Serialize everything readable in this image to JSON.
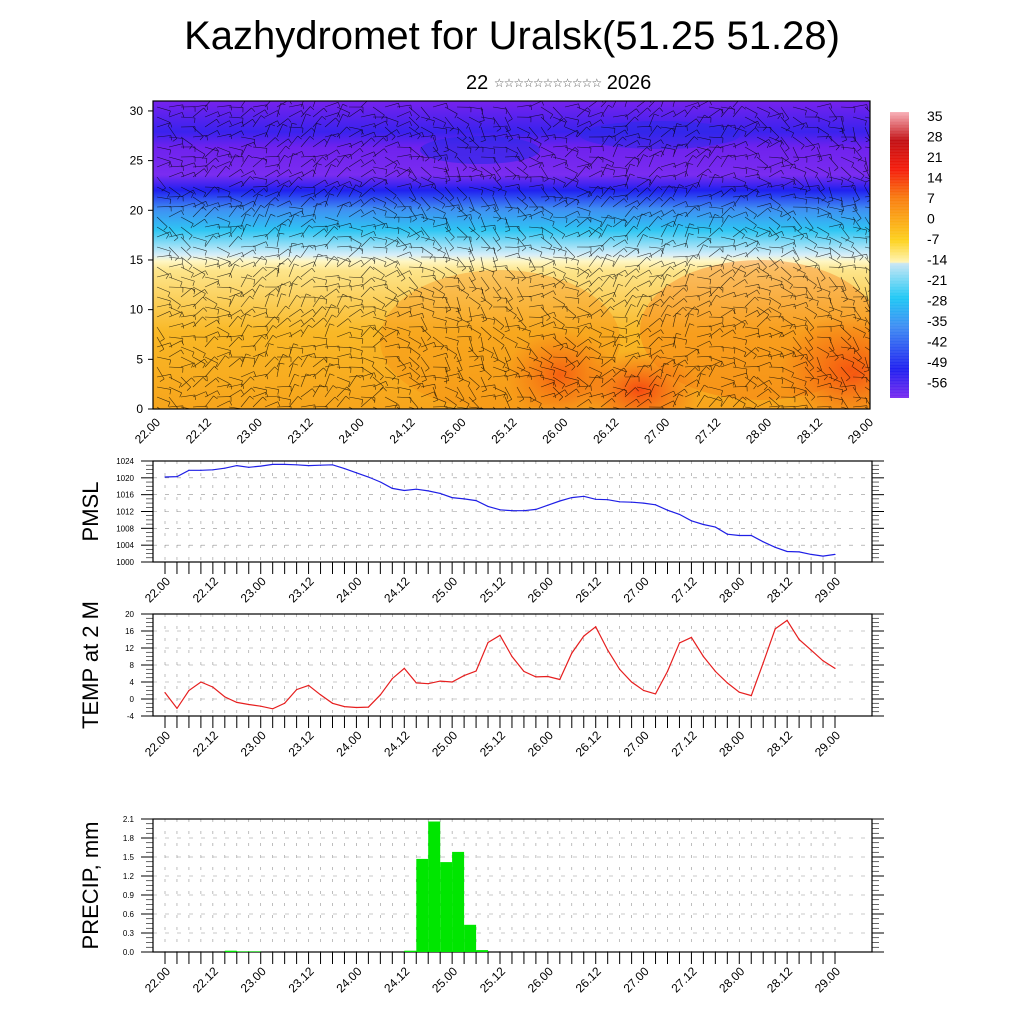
{
  "header": {
    "title": "Kazhydromet for Uralsk(51.25 51.28)",
    "subtitle_day": "22",
    "subtitle_month_glyphs": "☆☆☆☆☆☆☆☆☆☆☆",
    "subtitle_year": "2026"
  },
  "colors": {
    "pmsl_line": "#1f1fe6",
    "temp_line": "#e61f1f",
    "precip_bar": "#00e600"
  },
  "chart_data": [
    {
      "type": "heatmap",
      "name": "cross-section",
      "title": "",
      "xlabel": "",
      "ylabel": "",
      "x_tick_labels": [
        "22.00",
        "22.12",
        "23.00",
        "23.12",
        "24.00",
        "24.12",
        "25.00",
        "25.12",
        "26.00",
        "26.12",
        "27.00",
        "27.12",
        "28.00",
        "28.12",
        "29.00"
      ],
      "y_ticks": [
        0,
        5,
        10,
        15,
        20,
        25,
        30
      ],
      "ylim": [
        0,
        31
      ],
      "colorbar_labels": [
        "35",
        "28",
        "21",
        "14",
        "7",
        "0",
        "-7",
        "-14",
        "-21",
        "-28",
        "-35",
        "-42",
        "-49",
        "-56"
      ],
      "colorbar_range": [
        -63,
        38
      ],
      "description_bands": [
        {
          "level": 0,
          "value": 8
        },
        {
          "level": 5,
          "value": 6
        },
        {
          "level": 10,
          "value": 2
        },
        {
          "level": 14,
          "value": -10
        },
        {
          "level": 15,
          "value": -16
        },
        {
          "level": 18,
          "value": -28
        },
        {
          "level": 21,
          "value": -45
        },
        {
          "level": 22,
          "value": -55
        },
        {
          "level": 25,
          "value": -58
        },
        {
          "level": 30,
          "value": -60
        }
      ],
      "overlay": "wind barbs"
    },
    {
      "type": "line",
      "name": "PMSL",
      "ylabel": "PMSL",
      "ylim": [
        1000,
        1024
      ],
      "y_ticks": [
        1000,
        1004,
        1008,
        1012,
        1016,
        1020,
        1024
      ],
      "x_tick_labels": [
        "22.00",
        "22.12",
        "23.00",
        "23.12",
        "24.00",
        "24.12",
        "25.00",
        "25.12",
        "26.00",
        "26.12",
        "27.00",
        "27.12",
        "28.00",
        "28.12",
        "29.00"
      ],
      "step_hours": 3,
      "series": [
        {
          "name": "PMSL",
          "values": [
            1020.2,
            1020.3,
            1021.8,
            1021.8,
            1021.9,
            1022.3,
            1022.9,
            1022.5,
            1022.8,
            1023.2,
            1023.2,
            1023.1,
            1022.9,
            1023.0,
            1023.1,
            1022.2,
            1021.2,
            1020.2,
            1019.0,
            1017.5,
            1017.0,
            1017.3,
            1016.9,
            1016.3,
            1015.3,
            1015.0,
            1014.6,
            1013.2,
            1012.4,
            1012.2,
            1012.2,
            1012.5,
            1013.5,
            1014.5,
            1015.3,
            1015.6,
            1014.9,
            1014.8,
            1014.3,
            1014.2,
            1014.0,
            1013.6,
            1012.3,
            1011.3,
            1009.8,
            1008.9,
            1008.3,
            1006.6,
            1006.3,
            1006.3,
            1004.8,
            1003.5,
            1002.5,
            1002.4,
            1001.8,
            1001.4,
            1001.8
          ]
        }
      ]
    },
    {
      "type": "line",
      "name": "TEMP at 2 M",
      "ylabel": "TEMP at 2 M",
      "ylim": [
        -4,
        20
      ],
      "y_ticks": [
        -4,
        0,
        4,
        8,
        12,
        16,
        20
      ],
      "x_tick_labels": [
        "22.00",
        "22.12",
        "23.00",
        "23.12",
        "24.00",
        "24.12",
        "25.00",
        "25.12",
        "26.00",
        "26.12",
        "27.00",
        "27.12",
        "28.00",
        "28.12",
        "29.00"
      ],
      "step_hours": 3,
      "series": [
        {
          "name": "TEMP at 2 M",
          "values": [
            1.5,
            -2.2,
            2.0,
            4.0,
            2.8,
            0.5,
            -0.8,
            -1.3,
            -1.7,
            -2.3,
            -1.0,
            2.2,
            3.2,
            1.0,
            -1.0,
            -1.8,
            -2.0,
            -1.9,
            1.0,
            4.8,
            7.2,
            3.8,
            3.6,
            4.2,
            4.0,
            5.5,
            6.6,
            13.3,
            15.0,
            10.0,
            6.5,
            5.2,
            5.3,
            4.6,
            10.8,
            14.8,
            17.0,
            11.5,
            7.0,
            4.0,
            2.0,
            1.2,
            6.5,
            13.2,
            14.5,
            10.0,
            6.5,
            3.8,
            1.6,
            0.8,
            8.5,
            16.5,
            18.5,
            14.0,
            11.5,
            9.0,
            7.2
          ]
        }
      ]
    },
    {
      "type": "bar",
      "name": "PRECIP, mm",
      "ylabel": "PRECIP, mm",
      "ylim": [
        0,
        2.1
      ],
      "y_ticks": [
        "0.0",
        "0.3",
        "0.6",
        "0.9",
        "1.2",
        "1.5",
        "1.8",
        "2.1"
      ],
      "x_tick_labels": [
        "22.00",
        "22.12",
        "23.00",
        "23.12",
        "24.00",
        "24.12",
        "25.00",
        "25.12",
        "26.00",
        "26.12",
        "27.00",
        "27.12",
        "28.00",
        "28.12",
        "29.00"
      ],
      "step_hours": 3,
      "series": [
        {
          "name": "PRECIP",
          "values": [
            0,
            0,
            0,
            0,
            0,
            0.02,
            0.01,
            0.01,
            0,
            0,
            0,
            0,
            0,
            0,
            0,
            0,
            0,
            0,
            0,
            0,
            0.02,
            1.47,
            2.06,
            1.42,
            1.58,
            0.43,
            0.03,
            0,
            0,
            0,
            0,
            0,
            0,
            0,
            0,
            0,
            0,
            0,
            0,
            0,
            0,
            0,
            0,
            0,
            0,
            0,
            0,
            0,
            0,
            0,
            0,
            0,
            0,
            0,
            0,
            0
          ]
        }
      ]
    }
  ]
}
